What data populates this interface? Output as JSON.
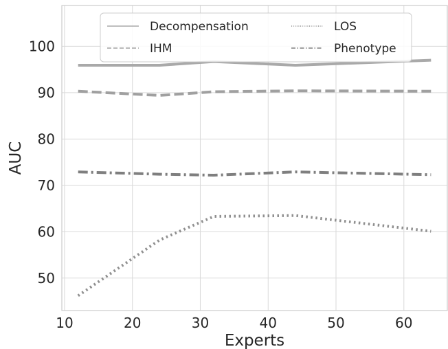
{
  "chart_data": {
    "type": "line",
    "xlabel": "Experts",
    "ylabel": "AUC",
    "xlim": [
      9.6,
      66.4
    ],
    "ylim": [
      43,
      108.8
    ],
    "xticks": [
      10,
      20,
      30,
      40,
      50,
      60
    ],
    "yticks": [
      50,
      60,
      70,
      80,
      90,
      100
    ],
    "grid": true,
    "legend_position": "top-center",
    "legend_columns": 2,
    "series": [
      {
        "name": "Decompensation",
        "style": "solid",
        "color": "#a9a9a9",
        "x": [
          12,
          24,
          32,
          44,
          64
        ],
        "y": [
          95.9,
          95.9,
          96.7,
          95.9,
          97.0
        ]
      },
      {
        "name": "IHM",
        "style": "dashed",
        "color": "#a0a0a0",
        "x": [
          12,
          24,
          32,
          44,
          64
        ],
        "y": [
          90.3,
          89.4,
          90.2,
          90.4,
          90.3
        ]
      },
      {
        "name": "LOS",
        "style": "dotted",
        "color": "#8f8f8f",
        "x": [
          12,
          24,
          32,
          44,
          64
        ],
        "y": [
          46.2,
          58.2,
          63.3,
          63.5,
          60.1
        ]
      },
      {
        "name": "Phenotype",
        "style": "dashdot",
        "color": "#7f7f7f",
        "x": [
          12,
          24,
          32,
          44,
          64
        ],
        "y": [
          72.9,
          72.4,
          72.2,
          72.9,
          72.3
        ]
      }
    ]
  }
}
